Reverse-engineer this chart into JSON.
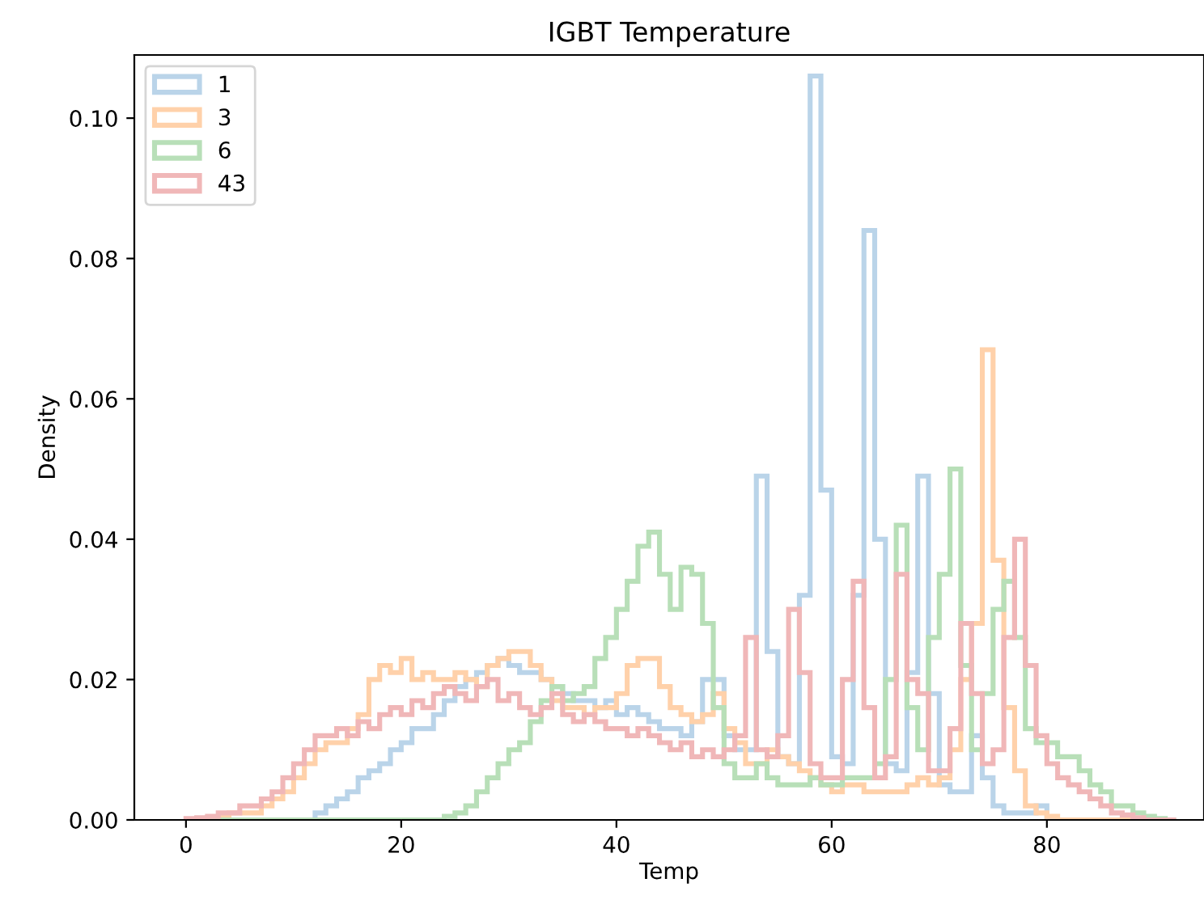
{
  "chart_data": {
    "type": "histogram",
    "title": "IGBT Temperature",
    "xlabel": "Temp",
    "ylabel": "Density",
    "bins": [
      0,
      1,
      2,
      3,
      4,
      5,
      6,
      7,
      8,
      9,
      10,
      11,
      12,
      13,
      14,
      15,
      16,
      17,
      18,
      19,
      20,
      21,
      22,
      23,
      24,
      25,
      26,
      27,
      28,
      29,
      30,
      31,
      32,
      33,
      34,
      35,
      36,
      37,
      38,
      39,
      40,
      41,
      42,
      43,
      44,
      45,
      46,
      47,
      48,
      49,
      50,
      51,
      52,
      53,
      54,
      55,
      56,
      57,
      58,
      59,
      60,
      61,
      62,
      63,
      64,
      65,
      66,
      67,
      68,
      69,
      70,
      71,
      72,
      73,
      74,
      75,
      76,
      77,
      78,
      79,
      80,
      81,
      82,
      83,
      84,
      85,
      86,
      87,
      88,
      89,
      90,
      91,
      92
    ],
    "series": [
      {
        "name": "1",
        "color": "#bad4e9",
        "values": [
          0,
          0,
          0,
          0,
          0,
          0,
          0,
          0,
          0,
          0,
          0,
          0,
          0.001,
          0.002,
          0.003,
          0.004,
          0.006,
          0.007,
          0.008,
          0.01,
          0.011,
          0.013,
          0.013,
          0.015,
          0.017,
          0.019,
          0.02,
          0.021,
          0.022,
          0.023,
          0.022,
          0.021,
          0.021,
          0.02,
          0.019,
          0.018,
          0.017,
          0.017,
          0.016,
          0.017,
          0.015,
          0.016,
          0.015,
          0.014,
          0.013,
          0.013,
          0.012,
          0.014,
          0.02,
          0.02,
          0.012,
          0.01,
          0.01,
          0.049,
          0.024,
          0.009,
          0.008,
          0.032,
          0.106,
          0.047,
          0.009,
          0.008,
          0.032,
          0.084,
          0.04,
          0.008,
          0.007,
          0.021,
          0.049,
          0.018,
          0.005,
          0.004,
          0.004,
          0.012,
          0.006,
          0.002,
          0.001,
          0.001,
          0.001,
          0.002,
          0,
          0,
          0,
          0,
          0,
          0,
          0,
          0,
          0,
          0,
          0,
          0
        ]
      },
      {
        "name": "3",
        "color": "#ffd1aa",
        "values": [
          0,
          0,
          0.0003,
          0.0005,
          0.001,
          0.001,
          0.001,
          0.002,
          0.003,
          0.004,
          0.006,
          0.008,
          0.01,
          0.011,
          0.011,
          0.013,
          0.015,
          0.02,
          0.022,
          0.021,
          0.023,
          0.02,
          0.021,
          0.02,
          0.02,
          0.021,
          0.02,
          0.019,
          0.022,
          0.023,
          0.024,
          0.024,
          0.022,
          0.02,
          0.017,
          0.016,
          0.016,
          0.015,
          0.016,
          0.016,
          0.018,
          0.022,
          0.023,
          0.023,
          0.019,
          0.016,
          0.015,
          0.014,
          0.015,
          0.018,
          0.013,
          0.011,
          0.008,
          0.008,
          0.01,
          0.009,
          0.008,
          0.007,
          0.006,
          0.005,
          0.004,
          0.005,
          0.005,
          0.004,
          0.004,
          0.004,
          0.004,
          0.005,
          0.006,
          0.005,
          0.006,
          0.01,
          0.02,
          0.028,
          0.067,
          0.037,
          0.016,
          0.007,
          0.002,
          0.001,
          0.0005,
          0,
          0,
          0,
          0,
          0,
          0,
          0,
          0,
          0,
          0,
          0
        ]
      },
      {
        "name": "6",
        "color": "#b8dfb8",
        "values": [
          0,
          0,
          0,
          0,
          0,
          0,
          0,
          0,
          0,
          0,
          0,
          0,
          0,
          0,
          0,
          0,
          0,
          0,
          0,
          0,
          0,
          0,
          0,
          0,
          0.0005,
          0.001,
          0.002,
          0.004,
          0.006,
          0.008,
          0.01,
          0.011,
          0.014,
          0.017,
          0.019,
          0.017,
          0.018,
          0.019,
          0.023,
          0.026,
          0.03,
          0.034,
          0.039,
          0.041,
          0.035,
          0.03,
          0.036,
          0.035,
          0.028,
          0.016,
          0.008,
          0.006,
          0.006,
          0.008,
          0.006,
          0.005,
          0.005,
          0.005,
          0.006,
          0.005,
          0.005,
          0.006,
          0.006,
          0.006,
          0.008,
          0.02,
          0.042,
          0.016,
          0.01,
          0.026,
          0.035,
          0.05,
          0.022,
          0.01,
          0.018,
          0.03,
          0.034,
          0.026,
          0.013,
          0.011,
          0.011,
          0.009,
          0.009,
          0.007,
          0.005,
          0.004,
          0.002,
          0.002,
          0.001,
          0.0005,
          0.0002,
          0
        ]
      },
      {
        "name": "43",
        "color": "#f0b7b8",
        "values": [
          0.0002,
          0.0003,
          0.0005,
          0.001,
          0.001,
          0.002,
          0.002,
          0.003,
          0.004,
          0.006,
          0.008,
          0.01,
          0.012,
          0.012,
          0.013,
          0.012,
          0.014,
          0.013,
          0.015,
          0.016,
          0.015,
          0.017,
          0.016,
          0.018,
          0.019,
          0.018,
          0.017,
          0.019,
          0.02,
          0.017,
          0.018,
          0.016,
          0.015,
          0.016,
          0.018,
          0.015,
          0.014,
          0.015,
          0.014,
          0.013,
          0.013,
          0.012,
          0.013,
          0.012,
          0.011,
          0.01,
          0.011,
          0.009,
          0.01,
          0.009,
          0.01,
          0.012,
          0.026,
          0.01,
          0.009,
          0.012,
          0.03,
          0.021,
          0.008,
          0.006,
          0.006,
          0.02,
          0.034,
          0.016,
          0.006,
          0.009,
          0.035,
          0.02,
          0.018,
          0.007,
          0.007,
          0.013,
          0.028,
          0.018,
          0.008,
          0.01,
          0.026,
          0.04,
          0.022,
          0.012,
          0.008,
          0.006,
          0.005,
          0.004,
          0.003,
          0.002,
          0.001,
          0.0007,
          0.0003,
          0,
          0,
          0
        ]
      }
    ],
    "xlim": [
      -4.8,
      94.6
    ],
    "ylim": [
      0,
      0.109
    ],
    "xticks": [
      0,
      20,
      40,
      60,
      80
    ],
    "yticks": [
      {
        "value": 0,
        "label": "0.00"
      },
      {
        "value": 0.02,
        "label": "0.02"
      },
      {
        "value": 0.04,
        "label": "0.04"
      },
      {
        "value": 0.06,
        "label": "0.06"
      },
      {
        "value": 0.08,
        "label": "0.08"
      },
      {
        "value": 0.1,
        "label": "0.10"
      }
    ],
    "legend": "top left",
    "grid": false
  }
}
